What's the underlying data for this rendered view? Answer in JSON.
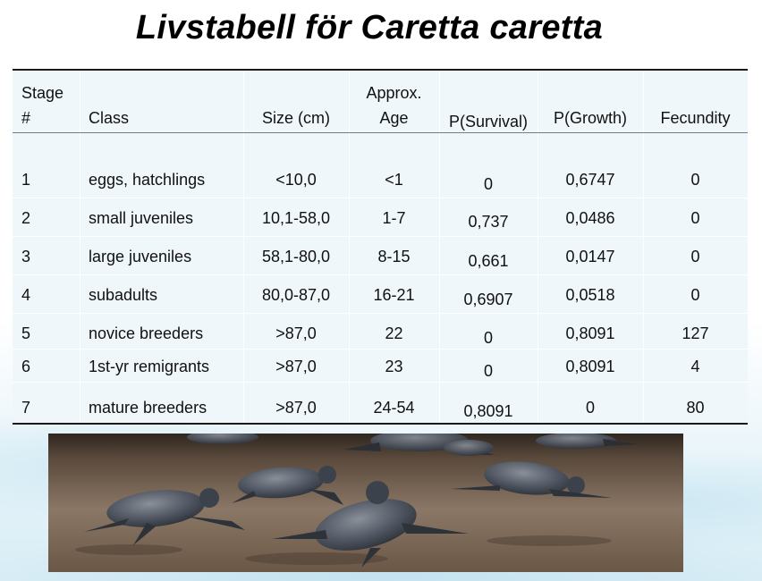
{
  "title": "Livstabell för Caretta caretta",
  "table": {
    "headers": {
      "stage": [
        "Stage",
        "#"
      ],
      "class": "Class",
      "size": "Size (cm)",
      "age": [
        "Approx.",
        "Age"
      ],
      "survival": "P(Survival)",
      "growth": "P(Growth)",
      "fecundity": "Fecundity"
    },
    "rows": [
      {
        "stage": "1",
        "class": "eggs, hatchlings",
        "size": "<10,0",
        "age": "<1",
        "survival": "0",
        "growth": "0,6747",
        "fecundity": "0"
      },
      {
        "stage": "2",
        "class": "small juveniles",
        "size": "10,1-58,0",
        "age": "1-7",
        "survival": "0,737",
        "growth": "0,0486",
        "fecundity": "0"
      },
      {
        "stage": "3",
        "class": "large juveniles",
        "size": "58,1-80,0",
        "age": "8-15",
        "survival": "0,661",
        "growth": "0,0147",
        "fecundity": "0"
      },
      {
        "stage": "4",
        "class": "subadults",
        "size": "80,0-87,0",
        "age": "16-21",
        "survival": "0,6907",
        "growth": "0,0518",
        "fecundity": "0"
      },
      {
        "stage": "5",
        "class": "novice breeders",
        "size": ">87,0",
        "age": "22",
        "survival": "0",
        "growth": "0,8091",
        "fecundity": "127"
      },
      {
        "stage": "6",
        "class": "1st-yr remigrants",
        "size": ">87,0",
        "age": "23",
        "survival": "0",
        "growth": "0,8091",
        "fecundity": "4"
      },
      {
        "stage": "7",
        "class": "mature breeders",
        "size": ">87,0",
        "age": "24-54",
        "survival": "0,8091",
        "growth": "0",
        "fecundity": "80"
      }
    ]
  },
  "photo": {
    "subject": "sea-turtle-hatchlings-on-sand"
  }
}
